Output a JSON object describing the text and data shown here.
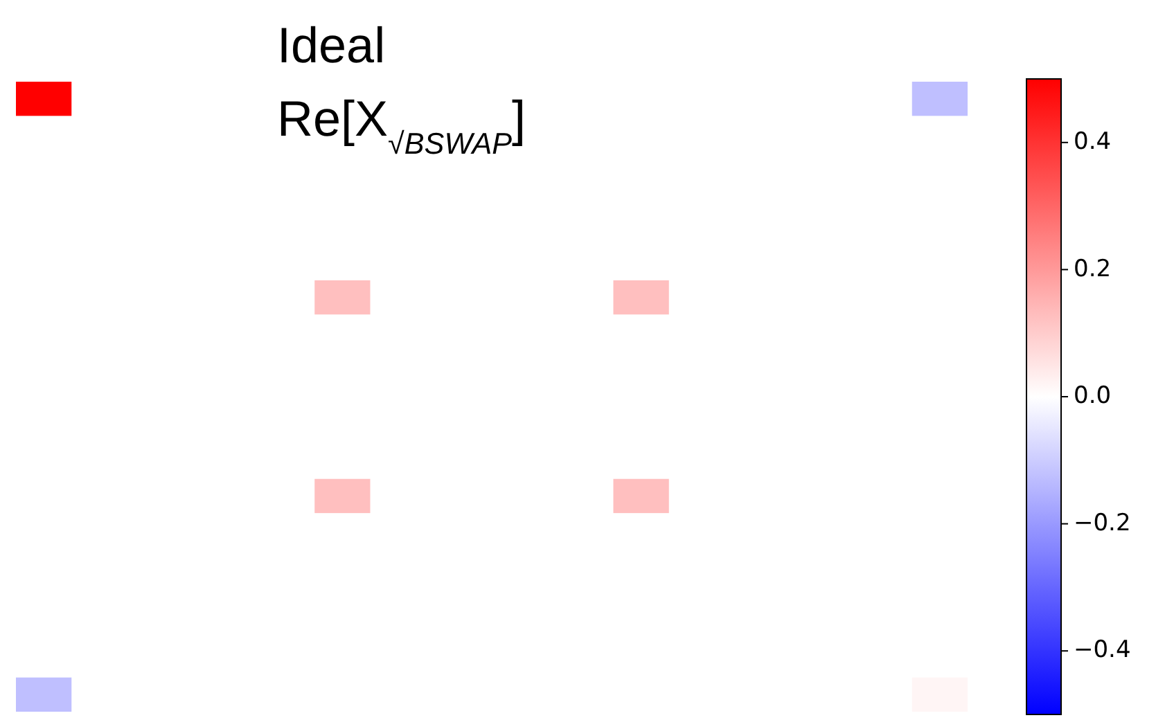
{
  "chart_data": {
    "type": "heatmap",
    "title": "Ideal",
    "subtitle": "Re[X$_{√BSWAP}$]",
    "categories": [
      null,
      null,
      null,
      null,
      null,
      null,
      null,
      null,
      null,
      null,
      null,
      null,
      null,
      null,
      null,
      null
    ],
    "y_categories": [
      null,
      null,
      null,
      null,
      null,
      null,
      null,
      null,
      null,
      null,
      null,
      null,
      null,
      null,
      null,
      null
    ],
    "cells": [
      [
        0.5,
        0,
        0,
        0,
        0,
        0,
        0,
        0,
        0,
        0,
        0,
        0,
        0,
        0,
        0,
        -0.125
      ],
      [
        0,
        0,
        0,
        0,
        0,
        0,
        0,
        0,
        0,
        0,
        0,
        0,
        0,
        0,
        0,
        0
      ],
      [
        0,
        0,
        0,
        0,
        0,
        0,
        0,
        0,
        0,
        0,
        0,
        0,
        0,
        0,
        0,
        0
      ],
      [
        0,
        0,
        0,
        0,
        0,
        0,
        0,
        0,
        0,
        0,
        0,
        0,
        0,
        0,
        0,
        0
      ],
      [
        0,
        0,
        0,
        0,
        0,
        0,
        0,
        0,
        0,
        0,
        0,
        0,
        0,
        0,
        0,
        0
      ],
      [
        0,
        0,
        0,
        0,
        0,
        0.125,
        0,
        0,
        0,
        0,
        0.125,
        0,
        0,
        0,
        0,
        0
      ],
      [
        0,
        0,
        0,
        0,
        0,
        0,
        0,
        0,
        0,
        0,
        0,
        0,
        0,
        0,
        0,
        0
      ],
      [
        0,
        0,
        0,
        0,
        0,
        0,
        0,
        0,
        0,
        0,
        0,
        0,
        0,
        0,
        0,
        0
      ],
      [
        0,
        0,
        0,
        0,
        0,
        0,
        0,
        0,
        0,
        0,
        0,
        0,
        0,
        0,
        0,
        0
      ],
      [
        0,
        0,
        0,
        0,
        0,
        0,
        0,
        0,
        0,
        0,
        0,
        0,
        0,
        0,
        0,
        0
      ],
      [
        0,
        0,
        0,
        0,
        0,
        0.125,
        0,
        0,
        0,
        0,
        0.125,
        0,
        0,
        0,
        0,
        0
      ],
      [
        0,
        0,
        0,
        0,
        0,
        0,
        0,
        0,
        0,
        0,
        0,
        0,
        0,
        0,
        0,
        0
      ],
      [
        0,
        0,
        0,
        0,
        0,
        0,
        0,
        0,
        0,
        0,
        0,
        0,
        0,
        0,
        0,
        0
      ],
      [
        0,
        0,
        0,
        0,
        0,
        0,
        0,
        0,
        0,
        0,
        0,
        0,
        0,
        0,
        0,
        0
      ],
      [
        0,
        0,
        0,
        0,
        0,
        0,
        0,
        0,
        0,
        0,
        0,
        0,
        0,
        0,
        0,
        0
      ],
      [
        -0.125,
        0,
        0,
        0,
        0,
        0,
        0,
        0,
        0,
        0,
        0,
        0,
        0,
        0,
        0,
        0.02
      ]
    ],
    "clim": [
      -0.5,
      0.5
    ],
    "cticks": [
      {
        "value": -0.4,
        "label": "−0.4"
      },
      {
        "value": -0.2,
        "label": "−0.2"
      },
      {
        "value": 0,
        "label": "0.0"
      },
      0.2,
      0.4
    ]
  }
}
